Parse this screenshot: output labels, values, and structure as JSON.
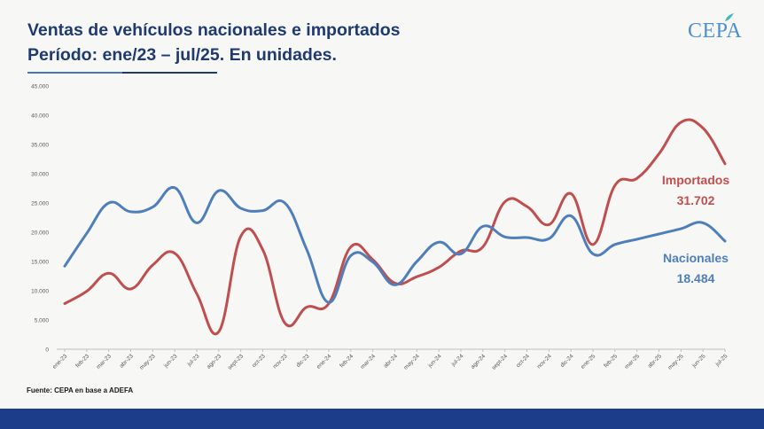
{
  "header": {
    "title_line1": "Ventas de vehículos nacionales e importados",
    "title_line2": "Período: ene/23 – jul/25. En unidades.",
    "logo_text": "CEPA"
  },
  "source": "Fuente: CEPA en base a ADEFA",
  "colors": {
    "nacionales": "#4f7fba",
    "importados": "#bf4f4f",
    "title": "#1f3a6e",
    "footer": "#1c3d8a"
  },
  "chart_data": {
    "type": "line",
    "xlabel": "",
    "ylabel": "",
    "ylim": [
      0,
      45000
    ],
    "yticks": [
      0,
      5000,
      10000,
      15000,
      20000,
      25000,
      30000,
      35000,
      40000,
      45000
    ],
    "ytick_labels": [
      "0",
      "5.000",
      "10.000",
      "15.000",
      "20.000",
      "25.000",
      "30.000",
      "35.000",
      "40.000",
      "45.000"
    ],
    "grid": false,
    "categories": [
      "ene-23",
      "feb-23",
      "mar-23",
      "abr-23",
      "may-23",
      "jun-23",
      "jul-23",
      "ago-23",
      "sept-23",
      "oct-23",
      "nov-23",
      "dic-23",
      "ene-24",
      "feb-24",
      "mar-24",
      "abr-24",
      "may-24",
      "jun-24",
      "jul-24",
      "ago-24",
      "sept-24",
      "oct-24",
      "nov-24",
      "dic-24",
      "ene-25",
      "feb-25",
      "mar-25",
      "abr-25",
      "may-25",
      "jun-25",
      "jul-25"
    ],
    "series": [
      {
        "name": "Nacionales",
        "values": [
          14200,
          19800,
          25000,
          23500,
          24300,
          27600,
          21600,
          27100,
          24100,
          23700,
          25000,
          17000,
          8000,
          16000,
          14900,
          11000,
          15000,
          18300,
          16300,
          21000,
          19200,
          19100,
          18900,
          22800,
          16300,
          17900,
          18800,
          19700,
          20600,
          21600,
          18484
        ],
        "end_label_value": "18.484"
      },
      {
        "name": "Importados",
        "values": [
          7800,
          9900,
          13000,
          10300,
          14400,
          16400,
          9500,
          3000,
          19300,
          17000,
          4500,
          7200,
          7800,
          17500,
          15300,
          11300,
          12400,
          14000,
          16800,
          17500,
          25200,
          24400,
          21300,
          26600,
          17900,
          28000,
          29200,
          33400,
          38800,
          37800,
          31702
        ],
        "end_label_value": "31.702"
      }
    ]
  }
}
